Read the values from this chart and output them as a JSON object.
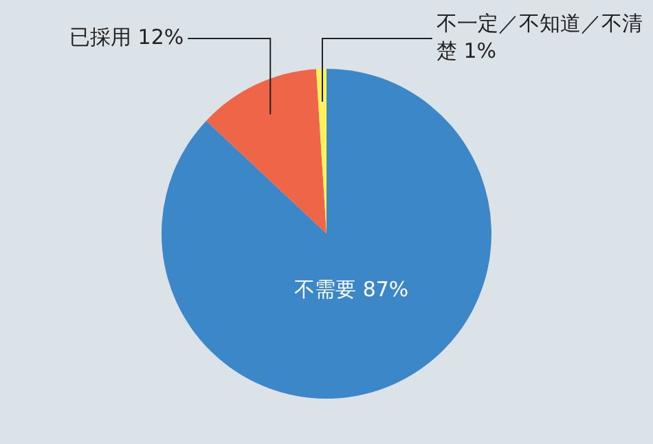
{
  "chart_data": {
    "type": "pie",
    "categories": [
      "不需要",
      "已採用",
      "不一定／不知道／不清楚"
    ],
    "values": [
      87,
      12,
      1
    ],
    "value_labels": [
      "87%",
      "12%",
      "1%"
    ],
    "colors": [
      "#3b87c8",
      "#ef6548",
      "#fff159"
    ],
    "legend": false
  }
}
